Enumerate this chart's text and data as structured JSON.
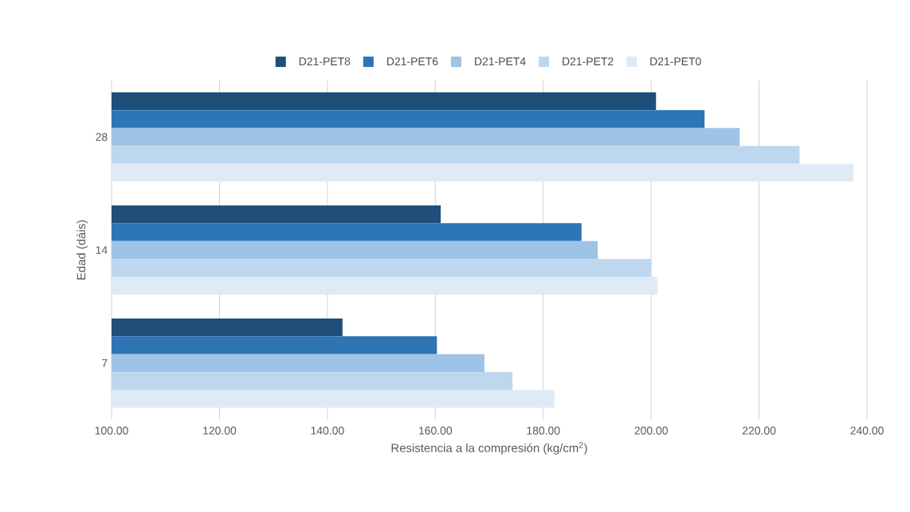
{
  "chart_data": {
    "type": "bar",
    "orientation": "horizontal",
    "xlabel": "Resistencia a la compresión (kg/cm$^{2}$)",
    "ylabel": "Edad (dáis)",
    "categories": [
      "28",
      "14",
      "7"
    ],
    "series": [
      {
        "name": "D21-PET8",
        "color": "#1f4e79",
        "values": [
          200.9,
          161.0,
          142.8
        ]
      },
      {
        "name": "D21-PET6",
        "color": "#2e75b6",
        "values": [
          209.9,
          187.1,
          160.3
        ]
      },
      {
        "name": "D21-PET4",
        "color": "#9dc3e6",
        "values": [
          216.4,
          190.1,
          169.1
        ]
      },
      {
        "name": "D21-PET2",
        "color": "#bdd7ee",
        "values": [
          227.5,
          200.0,
          174.3
        ]
      },
      {
        "name": "D21-PET0",
        "color": "#deebf7",
        "values": [
          237.5,
          201.2,
          182.1
        ]
      }
    ],
    "xlim": [
      100,
      240
    ],
    "xticks": [
      {
        "value": 100,
        "label": "100.00"
      },
      {
        "value": 120,
        "label": "120.00"
      },
      {
        "value": 140,
        "label": "140.00"
      },
      {
        "value": 160,
        "label": "160.00"
      },
      {
        "value": 180,
        "label": "180.00"
      },
      {
        "value": 200,
        "label": "200.00"
      },
      {
        "value": 220,
        "label": "220.00"
      },
      {
        "value": 240,
        "label": "240.00"
      }
    ],
    "grid": "x",
    "legend": "top"
  }
}
